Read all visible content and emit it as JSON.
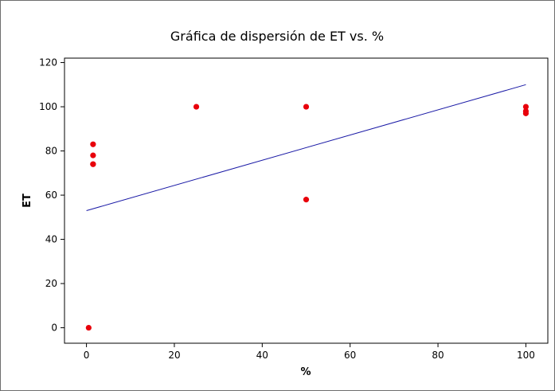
{
  "chart_data": {
    "type": "scatter",
    "title": "Gráfica de dispersión de ET vs. %",
    "xlabel": "%",
    "ylabel": "ET",
    "xlim": [
      -5,
      105
    ],
    "ylim": [
      -7,
      122
    ],
    "xticks": [
      0,
      20,
      40,
      60,
      80,
      100
    ],
    "yticks": [
      0,
      20,
      40,
      60,
      80,
      100,
      120
    ],
    "grid": false,
    "colors": {
      "points": "#e8000b",
      "fit_line": "#1a1aa6",
      "frame": "#6e6e6e"
    },
    "points": [
      {
        "x": 0.5,
        "y": 0
      },
      {
        "x": 1.5,
        "y": 74
      },
      {
        "x": 1.5,
        "y": 74
      },
      {
        "x": 1.5,
        "y": 78
      },
      {
        "x": 1.5,
        "y": 83
      },
      {
        "x": 25,
        "y": 100
      },
      {
        "x": 50,
        "y": 100
      },
      {
        "x": 50,
        "y": 58
      },
      {
        "x": 100,
        "y": 100
      },
      {
        "x": 100,
        "y": 98
      },
      {
        "x": 100,
        "y": 97
      }
    ],
    "fit_line": {
      "x": [
        0,
        100
      ],
      "y": [
        53,
        110
      ]
    }
  }
}
